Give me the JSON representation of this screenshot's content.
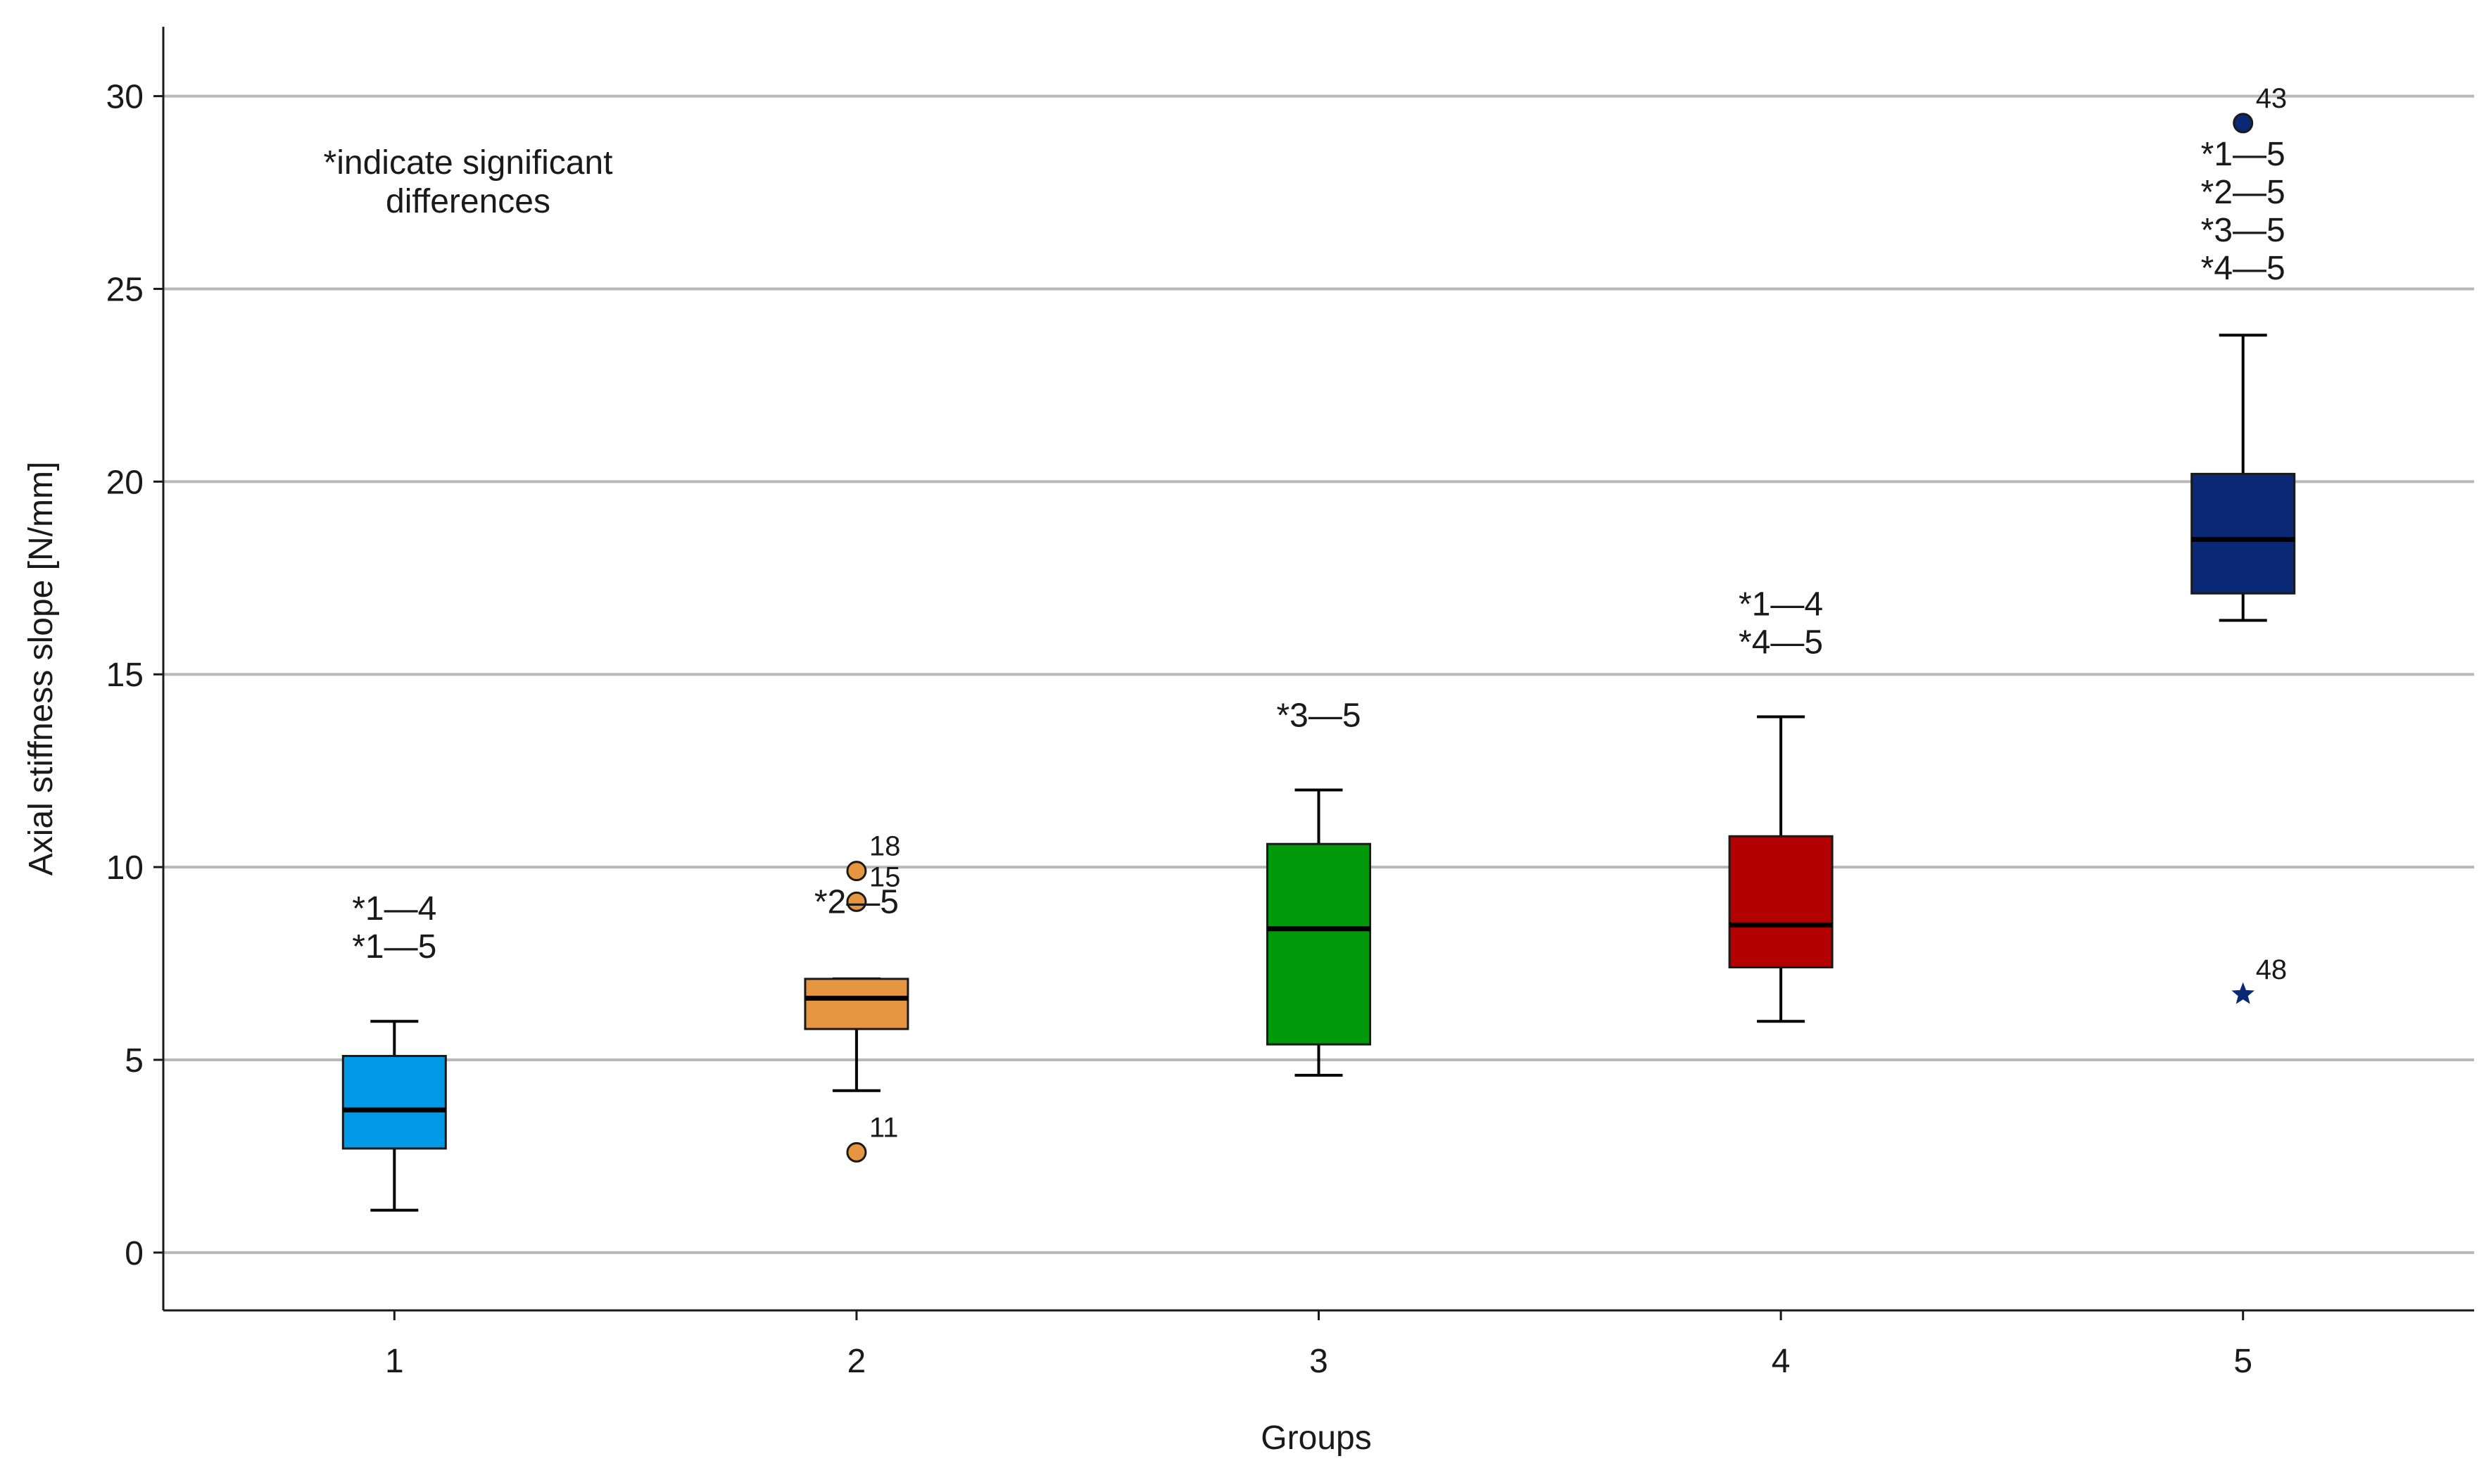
{
  "chart_data": {
    "type": "box",
    "title": "",
    "xlabel": "Groups",
    "ylabel": "Axial stiffness slope [N/mm]",
    "ylim": [
      -1.5,
      31.8
    ],
    "yticks": [
      0,
      5,
      10,
      15,
      20,
      25,
      30
    ],
    "ytick_labels": [
      "0",
      "5",
      "10",
      "15",
      "20",
      "25",
      "30"
    ],
    "grid": "horizontal",
    "note_lines": [
      "*indicate significant",
      "differences"
    ],
    "groups": [
      {
        "category": "1",
        "color": "#0099e6",
        "whisker_low": 1.1,
        "q1": 2.7,
        "median": 3.7,
        "q3": 5.1,
        "whisker_high": 6.0,
        "outliers": [],
        "significance": [
          "*1—4",
          "*1—5"
        ]
      },
      {
        "category": "2",
        "color": "#e69640",
        "whisker_low": 4.2,
        "q1": 5.8,
        "median": 6.6,
        "q3": 7.1,
        "whisker_high": 7.1,
        "outliers": [
          {
            "value": 9.9,
            "label": "18",
            "marker": "circle"
          },
          {
            "value": 9.1,
            "label": "15",
            "marker": "circle"
          },
          {
            "value": 2.6,
            "label": "11",
            "marker": "circle"
          }
        ],
        "significance": [
          "*2—5"
        ]
      },
      {
        "category": "3",
        "color": "#00990a",
        "whisker_low": 4.6,
        "q1": 5.4,
        "median": 8.4,
        "q3": 10.6,
        "whisker_high": 12.0,
        "outliers": [],
        "significance": [
          "*3—5"
        ]
      },
      {
        "category": "4",
        "color": "#b30000",
        "whisker_low": 6.0,
        "q1": 7.4,
        "median": 8.5,
        "q3": 10.8,
        "whisker_high": 13.9,
        "outliers": [],
        "significance": [
          "*1—4",
          "*4—5"
        ]
      },
      {
        "category": "5",
        "color": "#0a2873",
        "whisker_low": 16.4,
        "q1": 17.1,
        "median": 18.5,
        "q3": 20.2,
        "whisker_high": 23.8,
        "outliers": [
          {
            "value": 29.3,
            "label": "43",
            "marker": "circle"
          },
          {
            "value": 6.7,
            "label": "48",
            "marker": "star"
          }
        ],
        "significance": [
          "*1—5",
          "*2—5",
          "*3—5",
          "*4—5"
        ]
      }
    ]
  }
}
